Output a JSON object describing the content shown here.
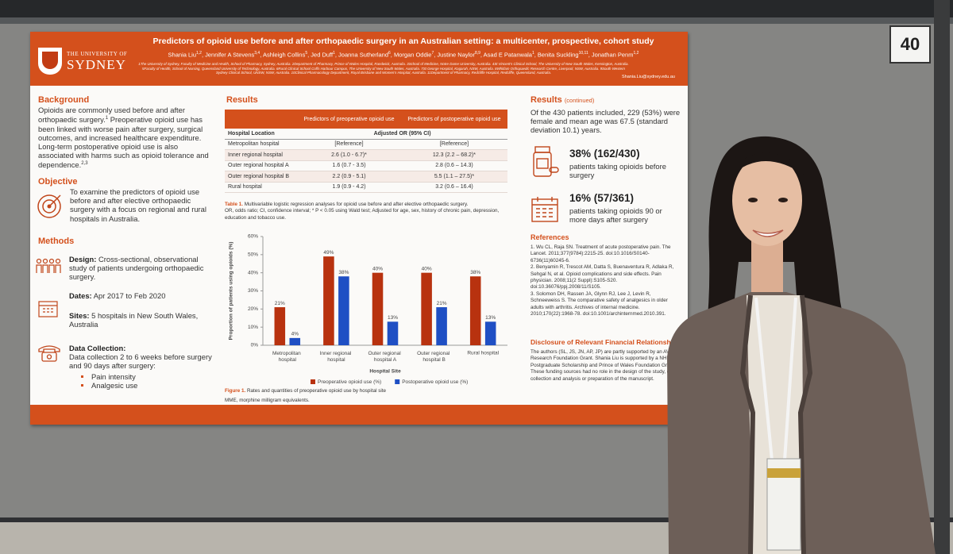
{
  "board_number": "40",
  "header": {
    "logo_line1": "THE UNIVERSITY OF",
    "logo_line2": "SYDNEY",
    "title": "Predictors of opioid use before and after orthopaedic surgery in an Australian setting: a multicenter, prospective, cohort study",
    "authors": [
      {
        "name": "Shania Liu",
        "sup": "1,2"
      },
      {
        "name": ", Jennifer A Stevens",
        "sup": "3,4"
      },
      {
        "name": ", Ashleigh Collins",
        "sup": "5"
      },
      {
        "name": ", Jed Duff",
        "sup": "1"
      },
      {
        "name": ", Joanna Sutherland",
        "sup": "6"
      },
      {
        "name": ", Morgan Oddie",
        "sup": "7"
      },
      {
        "name": ", Justine Naylor",
        "sup": "8,9"
      },
      {
        "name": ", Asad E Patanwala",
        "sup": "1"
      },
      {
        "name": ", Benita Suckling",
        "sup": "10,11"
      },
      {
        "name": ", Jonathan Penm",
        "sup": "1,2"
      }
    ],
    "affiliations": "1The University of Sydney, Faculty of Medicine and Health, School of Pharmacy, Sydney, Australia. 2Department of Pharmacy, Prince of Wales Hospital, Randwick, Australia. 3School of Medicine, Notre Dame University, Australia. 4St Vincent's Clinical School, The University of New South Wales, Kensington, Australia. 5Faculty of Health, School of Nursing, Queensland University of Technology, Australia. 6Rural Clinical School Coffs Harbour Campus, The University of New South Wales, Australia. 7St George Hospital, Kogarah, NSW, Australia. 8Whitlam Orthopaedic Research Centre, Liverpool, NSW, Australia. 9South Western Sydney Clinical School, UNSW, NSW, Australia. 10Clinical Pharmacology Department, Royal Brisbane and Women's Hospital, Australia. 11Department of Pharmacy, Redcliffe Hospital, Redcliffe, Queensland, Australia.",
    "email": "Shania.Liu@sydney.edu.au"
  },
  "background": {
    "heading": "Background",
    "parts": [
      {
        "text": "Opioids are commonly used before and after orthopaedic surgery."
      },
      {
        "sup": "1"
      },
      {
        "text": " Preoperative opioid use has been linked with worse pain after surgery, surgical outcomes, and increased healthcare expenditure. Long-term postoperative opioid use is also associated with harms such as opioid tolerance and dependence."
      },
      {
        "sup": "2,3"
      }
    ]
  },
  "objective": {
    "heading": "Objective",
    "text": "To examine the predictors of opioid use before and after elective orthopaedic surgery with a focus on regional and rural hospitals in Australia."
  },
  "methods": {
    "heading": "Methods",
    "items": [
      {
        "label": "Design:",
        "text": " Cross-sectional, observational study of patients undergoing orthopaedic surgery."
      },
      {
        "label": "Dates:",
        "text": " Apr 2017 to Feb 2020"
      },
      {
        "label": "Sites:",
        "text": " 5 hospitals in New South Wales, Australia"
      },
      {
        "label": "Data Collection:",
        "text": "Data collection 2 to 6 weeks before surgery and 90 days after surgery:"
      }
    ],
    "bullets": [
      "Pain intensity",
      "Analgesic use"
    ]
  },
  "results": {
    "heading": "Results",
    "table": {
      "columns": [
        "Predictors of preoperative opioid use",
        "Predictors of postoperative opioid use"
      ],
      "subheader": [
        "Hospital Location",
        "Adjusted OR (95% CI)"
      ],
      "rows": [
        [
          "Metropolitan hospital",
          "[Reference]",
          "[Reference]"
        ],
        [
          "Inner regional hospital",
          "2.6 (1.0 - 6.7)*",
          "12.3 (2.2 – 68.2)*"
        ],
        [
          "Outer regional hospital A",
          "1.6 (0.7 - 3.5)",
          "2.8 (0.6 – 14.3)"
        ],
        [
          "Outer regional hospital B",
          "2.2 (0.9 - 5.1)",
          "5.5 (1.1 – 27.5)*"
        ],
        [
          "Rural hospital",
          "1.9 (0.9 - 4.2)",
          "3.2 (0.6 – 16.4)"
        ]
      ]
    },
    "table_caption_label": "Table 1.",
    "table_caption": " Multivariable logistic regression analyses for opioid use before and after elective orthopaedic surgery.",
    "table_note": "OR, odds ratio; CI, confidence interval; * P < 0.05 using Wald test; Adjusted for age, sex, history of chronic pain, depression, education and tobacco use.",
    "figure_caption_label": "Figure 1.",
    "figure_caption": " Rates and quantities of preoperative opioid use by hospital site",
    "figure_note": "MME, morphine milligram equivalents."
  },
  "chart_data": {
    "type": "bar",
    "categories": [
      "Metropolitan hospital",
      "Inner regional hospital",
      "Outer regional hospital A",
      "Outer regional hospital B",
      "Rural hospital"
    ],
    "series": [
      {
        "name": "Preoperative opioid use (%)",
        "color": "#b8320f",
        "values": [
          21,
          49,
          40,
          40,
          38
        ],
        "value_labels": [
          "21%",
          "49%",
          "40%",
          "40%",
          "38%"
        ]
      },
      {
        "name": "Postoperative opioid use (%)",
        "color": "#1f4fc4",
        "values": [
          4,
          38,
          13,
          21,
          13
        ],
        "value_labels": [
          "4%",
          "38%",
          "13%",
          "21%",
          "13%"
        ]
      }
    ],
    "ylim": [
      0,
      60
    ],
    "yticks": [
      {
        "value": 0,
        "label": "0%"
      },
      {
        "value": 10,
        "label": "10%"
      },
      {
        "value": 20,
        "label": "20%"
      },
      {
        "value": 30,
        "label": "30%"
      },
      {
        "value": 40,
        "label": "40%"
      },
      {
        "value": 50,
        "label": "50%"
      },
      {
        "value": 60,
        "label": "60%"
      }
    ],
    "y_label": "Proportion of patients using opioids (%)",
    "x_label": "Hospital Site",
    "legend": "bottom"
  },
  "results_continued": {
    "heading": "Results",
    "heading_note": "(continued)",
    "text": "Of the 430 patients included, 229 (53%) were female and mean age was 67.5 (standard deviation 10.1) years.",
    "stats": [
      {
        "value": "38% (162/430)",
        "text": "patients taking opioids before surgery"
      },
      {
        "value": "16% (57/361)",
        "text": "patients taking opioids 90 or more days after surgery"
      }
    ]
  },
  "references": {
    "heading": "References",
    "items": [
      "1. Wu CL, Raja SN. Treatment of acute postoperative pain. The Lancet. 2011;377(9784):2215-25. doi:10.1016/S0140-6736(11)60245-6.",
      "2. Benyamin R, Trescot AM, Datta S, Buenaventura R, Adlaka R, Sehgal N, et al. Opioid complications and side effects. Pain physician. 2008;11(2 Suppl):S105-S20. doi:10.36076/ppj.2008/11/S105.",
      "3. Solomon DH, Rassen JA, Glynn RJ, Lee J, Levin R, Schneeweiss S. The comparative safety of analgesics in older adults with arthritis. Archives of internal medicine. 2010;170(22):1968-78. doi:10.1001/archinternmed.2010.391."
    ]
  },
  "disclosure": {
    "heading": "Disclosure of Relevant Financial Relationships",
    "text": "The authors (SL, JS, JN, AP, JP) are partly supported by an AVANT Research Foundation Grant. Shania Liu is supported by a NHMRC Postgraduate Scholarship and Prince of Wales Foundation Grant. These funding sources had no role in the design of the study, data collection and analysis or preparation of the manuscript."
  }
}
